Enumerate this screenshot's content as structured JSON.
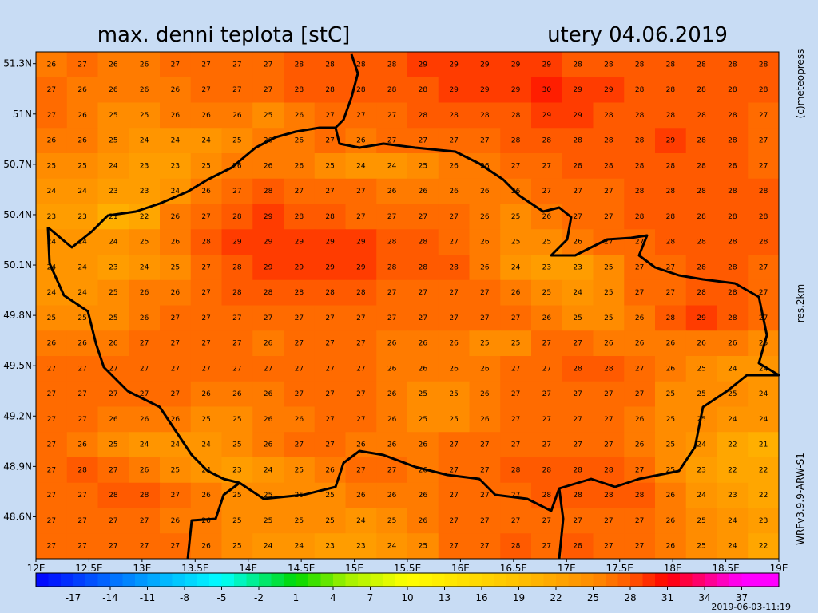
{
  "header": {
    "title": "max. denni teplota [stC]",
    "date": "utery 04.06.2019"
  },
  "side_texts": {
    "copyright": "(c)meteopress",
    "resolution": "res.2km",
    "model": "WRFv3.9.9-ARW-S1"
  },
  "footer": {
    "timestamp": "2019-06-03-11:19"
  },
  "map": {
    "xlim": [
      12,
      19
    ],
    "ylim": [
      48.35,
      51.37
    ],
    "xticks": [
      {
        "value": 12,
        "label": "12E"
      },
      {
        "value": 12.5,
        "label": "12.5E"
      },
      {
        "value": 13,
        "label": "13E"
      },
      {
        "value": 13.5,
        "label": "13.5E"
      },
      {
        "value": 14,
        "label": "14E"
      },
      {
        "value": 14.5,
        "label": "14.5E"
      },
      {
        "value": 15,
        "label": "15E"
      },
      {
        "value": 15.5,
        "label": "15.5E"
      },
      {
        "value": 16,
        "label": "16E"
      },
      {
        "value": 16.5,
        "label": "16.5E"
      },
      {
        "value": 17,
        "label": "17E"
      },
      {
        "value": 17.5,
        "label": "17.5E"
      },
      {
        "value": 18,
        "label": "18E"
      },
      {
        "value": 18.5,
        "label": "18.5E"
      },
      {
        "value": 19,
        "label": "19E"
      }
    ],
    "yticks": [
      {
        "value": 51.3,
        "label": "51.3N"
      },
      {
        "value": 51,
        "label": "51N"
      },
      {
        "value": 50.7,
        "label": "50.7N"
      },
      {
        "value": 50.4,
        "label": "50.4N"
      },
      {
        "value": 50.1,
        "label": "50.1N"
      },
      {
        "value": 49.8,
        "label": "49.8N"
      },
      {
        "value": 49.5,
        "label": "49.5N"
      },
      {
        "value": 49.2,
        "label": "49.2N"
      },
      {
        "value": 48.9,
        "label": "48.9N"
      },
      {
        "value": 48.6,
        "label": "48.6N"
      }
    ],
    "grid": [
      [
        26,
        27,
        26,
        26,
        27,
        27,
        27,
        27,
        28,
        28,
        28,
        28,
        29,
        29,
        29,
        29,
        29,
        28,
        28,
        28,
        28,
        28,
        28,
        28
      ],
      [
        27,
        26,
        26,
        26,
        26,
        27,
        27,
        27,
        28,
        28,
        28,
        28,
        28,
        29,
        29,
        29,
        30,
        29,
        29,
        28,
        28,
        28,
        28,
        28
      ],
      [
        27,
        26,
        25,
        25,
        26,
        26,
        26,
        25,
        26,
        27,
        27,
        27,
        28,
        28,
        28,
        28,
        29,
        29,
        28,
        28,
        28,
        28,
        28,
        27
      ],
      [
        26,
        26,
        25,
        24,
        24,
        24,
        25,
        26,
        26,
        27,
        26,
        27,
        27,
        27,
        27,
        28,
        28,
        28,
        28,
        28,
        29,
        28,
        28,
        27
      ],
      [
        25,
        25,
        24,
        23,
        23,
        25,
        26,
        26,
        26,
        25,
        24,
        24,
        25,
        26,
        26,
        27,
        27,
        28,
        28,
        28,
        28,
        28,
        28,
        27
      ],
      [
        24,
        24,
        23,
        23,
        24,
        26,
        27,
        28,
        27,
        27,
        27,
        26,
        26,
        26,
        26,
        26,
        27,
        27,
        27,
        28,
        28,
        28,
        28,
        28
      ],
      [
        23,
        23,
        21,
        22,
        26,
        27,
        28,
        29,
        28,
        28,
        27,
        27,
        27,
        27,
        26,
        25,
        26,
        27,
        27,
        28,
        28,
        28,
        28,
        28
      ],
      [
        24,
        24,
        24,
        25,
        26,
        28,
        29,
        29,
        29,
        29,
        29,
        28,
        28,
        27,
        26,
        25,
        25,
        26,
        27,
        27,
        28,
        28,
        28,
        28
      ],
      [
        24,
        24,
        23,
        24,
        25,
        27,
        28,
        29,
        29,
        29,
        29,
        28,
        28,
        28,
        26,
        24,
        23,
        23,
        25,
        27,
        27,
        28,
        28,
        27
      ],
      [
        24,
        24,
        25,
        26,
        26,
        27,
        28,
        28,
        28,
        28,
        28,
        27,
        27,
        27,
        27,
        26,
        25,
        24,
        25,
        27,
        27,
        28,
        28,
        27
      ],
      [
        25,
        25,
        25,
        26,
        27,
        27,
        27,
        27,
        27,
        27,
        27,
        27,
        27,
        27,
        27,
        27,
        26,
        25,
        25,
        26,
        28,
        29,
        28,
        27
      ],
      [
        26,
        26,
        26,
        27,
        27,
        27,
        27,
        26,
        27,
        27,
        27,
        26,
        26,
        26,
        25,
        25,
        27,
        27,
        26,
        26,
        26,
        26,
        26,
        25
      ],
      [
        27,
        27,
        27,
        27,
        27,
        27,
        27,
        27,
        27,
        27,
        27,
        26,
        26,
        26,
        26,
        27,
        27,
        28,
        28,
        27,
        26,
        25,
        24,
        24
      ],
      [
        27,
        27,
        27,
        27,
        27,
        26,
        26,
        26,
        27,
        27,
        27,
        26,
        25,
        25,
        26,
        27,
        27,
        27,
        27,
        27,
        25,
        25,
        25,
        24
      ],
      [
        27,
        27,
        26,
        26,
        26,
        25,
        25,
        26,
        26,
        27,
        27,
        26,
        25,
        25,
        26,
        27,
        27,
        27,
        27,
        26,
        25,
        25,
        24,
        24
      ],
      [
        27,
        26,
        25,
        24,
        24,
        24,
        25,
        26,
        27,
        27,
        26,
        26,
        26,
        27,
        27,
        27,
        27,
        27,
        27,
        26,
        25,
        24,
        22,
        21
      ],
      [
        27,
        28,
        27,
        26,
        25,
        24,
        23,
        24,
        25,
        26,
        27,
        27,
        26,
        27,
        27,
        28,
        28,
        28,
        28,
        27,
        25,
        23,
        22,
        22
      ],
      [
        27,
        27,
        28,
        28,
        27,
        26,
        25,
        25,
        25,
        25,
        26,
        26,
        26,
        27,
        27,
        27,
        28,
        28,
        28,
        28,
        26,
        24,
        23,
        22
      ],
      [
        27,
        27,
        27,
        27,
        26,
        26,
        25,
        25,
        25,
        25,
        24,
        25,
        26,
        27,
        27,
        27,
        27,
        27,
        27,
        27,
        26,
        25,
        24,
        23
      ],
      [
        27,
        27,
        27,
        27,
        27,
        26,
        25,
        24,
        24,
        23,
        23,
        24,
        25,
        27,
        27,
        28,
        27,
        28,
        27,
        27,
        26,
        25,
        24,
        22
      ]
    ]
  },
  "colorbar": {
    "range": [
      -20,
      40
    ],
    "ticks": [
      -17,
      -14,
      -11,
      -8,
      -5,
      -2,
      1,
      4,
      7,
      10,
      13,
      16,
      19,
      22,
      25,
      28,
      31,
      34,
      37
    ],
    "stops": [
      [
        -20,
        "#0000ff"
      ],
      [
        -11,
        "#00a0ff"
      ],
      [
        -5,
        "#00ffff"
      ],
      [
        1,
        "#00d800"
      ],
      [
        5,
        "#a0f000"
      ],
      [
        10,
        "#ffff00"
      ],
      [
        19,
        "#ffc000"
      ],
      [
        25,
        "#ff8c00"
      ],
      [
        28,
        "#ff5a00"
      ],
      [
        31,
        "#ff0000"
      ],
      [
        37,
        "#ff00ff"
      ],
      [
        40,
        "#ff00ff"
      ]
    ]
  }
}
